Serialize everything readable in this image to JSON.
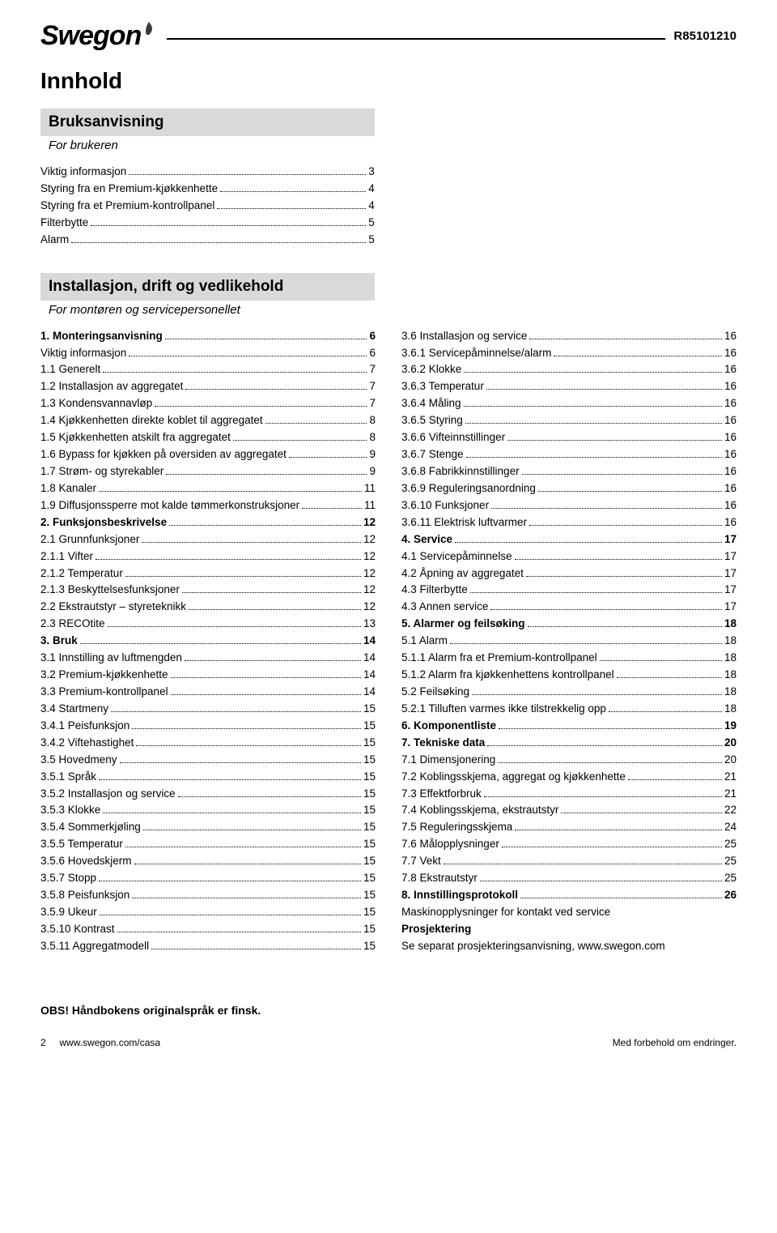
{
  "doc_id": "R85101210",
  "logo_text": "Swegon",
  "main_title": "Innhold",
  "section1": {
    "banner": "Bruksanvisning",
    "sub": "For brukeren",
    "items": [
      {
        "label": "Viktig informasjon",
        "page": "3",
        "bold": false
      },
      {
        "label": "Styring fra en Premium-kjøkkenhette",
        "page": "4",
        "bold": false
      },
      {
        "label": "Styring fra et Premium-kontrollpanel",
        "page": "4",
        "bold": false
      },
      {
        "label": "Filterbytte",
        "page": "5",
        "bold": false
      },
      {
        "label": "Alarm",
        "page": "5",
        "bold": false
      }
    ]
  },
  "section2": {
    "banner": "Installasjon, drift og vedlikehold",
    "sub": "For montøren og servicepersonellet"
  },
  "left_col": [
    {
      "label": "1. Monteringsanvisning",
      "page": "6",
      "bold": true
    },
    {
      "label": "Viktig informasjon",
      "page": "6",
      "bold": false
    },
    {
      "label": "1.1 Generelt",
      "page": "7",
      "bold": false
    },
    {
      "label": "1.2 Installasjon av aggregatet",
      "page": "7",
      "bold": false
    },
    {
      "label": "1.3 Kondensvannavløp",
      "page": "7",
      "bold": false
    },
    {
      "label": "1.4 Kjøkkenhetten direkte koblet til aggregatet",
      "page": "8",
      "bold": false
    },
    {
      "label": "1.5 Kjøkkenhetten atskilt fra aggregatet",
      "page": "8",
      "bold": false
    },
    {
      "label": "1.6 Bypass for kjøkken på oversiden av aggregatet",
      "page": "9",
      "bold": false
    },
    {
      "label": "1.7 Strøm- og styrekabler",
      "page": "9",
      "bold": false
    },
    {
      "label": "1.8 Kanaler",
      "page": "11",
      "bold": false
    },
    {
      "label": "1.9 Diffusjonssperre mot kalde tømmerkonstruksjoner",
      "page": "11",
      "bold": false
    },
    {
      "label": "2. Funksjonsbeskrivelse",
      "page": "12",
      "bold": true
    },
    {
      "label": "2.1 Grunnfunksjoner",
      "page": "12",
      "bold": false
    },
    {
      "label": "2.1.1 Vifter",
      "page": "12",
      "bold": false
    },
    {
      "label": "2.1.2 Temperatur",
      "page": "12",
      "bold": false
    },
    {
      "label": "2.1.3 Beskyttelsesfunksjoner",
      "page": "12",
      "bold": false
    },
    {
      "label": "2.2 Ekstrautstyr – styreteknikk",
      "page": "12",
      "bold": false
    },
    {
      "label": "2.3 RECOtite",
      "page": "13",
      "bold": false
    },
    {
      "label": "3. Bruk",
      "page": "14",
      "bold": true
    },
    {
      "label": "3.1 Innstilling av luftmengden",
      "page": "14",
      "bold": false
    },
    {
      "label": "3.2 Premium-kjøkkenhette",
      "page": "14",
      "bold": false
    },
    {
      "label": "3.3 Premium-kontrollpanel",
      "page": "14",
      "bold": false
    },
    {
      "label": "3.4 Startmeny",
      "page": "15",
      "bold": false
    },
    {
      "label": "3.4.1 Peisfunksjon",
      "page": "15",
      "bold": false
    },
    {
      "label": "3.4.2 Viftehastighet",
      "page": "15",
      "bold": false
    },
    {
      "label": "3.5 Hovedmeny",
      "page": "15",
      "bold": false
    },
    {
      "label": "3.5.1 Språk",
      "page": "15",
      "bold": false
    },
    {
      "label": "3.5.2 Installasjon og service",
      "page": "15",
      "bold": false
    },
    {
      "label": "3.5.3 Klokke",
      "page": "15",
      "bold": false
    },
    {
      "label": "3.5.4 Sommerkjøling",
      "page": "15",
      "bold": false
    },
    {
      "label": "3.5.5 Temperatur",
      "page": "15",
      "bold": false
    },
    {
      "label": "3.5.6 Hovedskjerm",
      "page": "15",
      "bold": false
    },
    {
      "label": "3.5.7 Stopp",
      "page": "15",
      "bold": false
    },
    {
      "label": "3.5.8 Peisfunksjon",
      "page": "15",
      "bold": false
    },
    {
      "label": "3.5.9 Ukeur",
      "page": "15",
      "bold": false
    },
    {
      "label": "3.5.10 Kontrast",
      "page": "15",
      "bold": false
    },
    {
      "label": "3.5.11 Aggregatmodell",
      "page": "15",
      "bold": false
    }
  ],
  "right_col": [
    {
      "label": "3.6 Installasjon og service",
      "page": "16",
      "bold": false
    },
    {
      "label": "3.6.1 Servicepåminnelse/alarm",
      "page": "16",
      "bold": false
    },
    {
      "label": "3.6.2 Klokke",
      "page": "16",
      "bold": false
    },
    {
      "label": "3.6.3 Temperatur",
      "page": "16",
      "bold": false
    },
    {
      "label": "3.6.4 Måling",
      "page": "16",
      "bold": false
    },
    {
      "label": "3.6.5 Styring",
      "page": "16",
      "bold": false
    },
    {
      "label": "3.6.6 Vifteinnstillinger",
      "page": "16",
      "bold": false
    },
    {
      "label": "3.6.7 Stenge",
      "page": "16",
      "bold": false
    },
    {
      "label": "3.6.8 Fabrikkinnstillinger",
      "page": "16",
      "bold": false
    },
    {
      "label": "3.6.9 Reguleringsanordning",
      "page": "16",
      "bold": false
    },
    {
      "label": "3.6.10 Funksjoner",
      "page": "16",
      "bold": false
    },
    {
      "label": "3.6.11 Elektrisk luftvarmer",
      "page": "16",
      "bold": false
    },
    {
      "label": "4. Service",
      "page": "17",
      "bold": true
    },
    {
      "label": "4.1 Servicepåminnelse",
      "page": "17",
      "bold": false
    },
    {
      "label": "4.2 Åpning av aggregatet",
      "page": "17",
      "bold": false
    },
    {
      "label": "4.3 Filterbytte",
      "page": "17",
      "bold": false
    },
    {
      "label": "4.3 Annen service",
      "page": "17",
      "bold": false
    },
    {
      "label": "5. Alarmer og feilsøking",
      "page": "18",
      "bold": true
    },
    {
      "label": "5.1 Alarm",
      "page": "18",
      "bold": false
    },
    {
      "label": "5.1.1 Alarm fra et Premium-kontrollpanel",
      "page": "18",
      "bold": false
    },
    {
      "label": "5.1.2 Alarm fra kjøkkenhettens kontrollpanel",
      "page": "18",
      "bold": false
    },
    {
      "label": "5.2 Feilsøking",
      "page": "18",
      "bold": false
    },
    {
      "label": "5.2.1 Tilluften varmes ikke tilstrekkelig opp",
      "page": "18",
      "bold": false
    },
    {
      "label": "6. Komponentliste",
      "page": "19",
      "bold": true
    },
    {
      "label": "7. Tekniske data",
      "page": "20",
      "bold": true
    },
    {
      "label": "7.1 Dimensjonering",
      "page": "20",
      "bold": false
    },
    {
      "label": "7.2 Koblingsskjema, aggregat og kjøkkenhette",
      "page": "21",
      "bold": false
    },
    {
      "label": "7.3 Effektforbruk",
      "page": "21",
      "bold": false
    },
    {
      "label": "7.4 Koblingsskjema, ekstrautstyr",
      "page": "22",
      "bold": false
    },
    {
      "label": "7.5 Reguleringsskjema",
      "page": "24",
      "bold": false
    },
    {
      "label": "7.6 Målopplysninger",
      "page": "25",
      "bold": false
    },
    {
      "label": "7.7 Vekt",
      "page": "25",
      "bold": false
    },
    {
      "label": "7.8 Ekstrautstyr",
      "page": "25",
      "bold": false
    },
    {
      "label": "8. Innstillingsprotokoll",
      "page": "26",
      "bold": true
    }
  ],
  "right_tail": [
    {
      "text": "Maskinopplysninger for kontakt ved service",
      "bold": false
    },
    {
      "text": "Prosjektering",
      "bold": true
    },
    {
      "text": "Se separat prosjekteringsanvisning, www.swegon.com",
      "bold": false
    }
  ],
  "footer_note": "OBS! Håndbokens originalspråk er finsk.",
  "footer_left_num": "2",
  "footer_left_url": "www.swegon.com/casa",
  "footer_right": "Med forbehold om endringer."
}
